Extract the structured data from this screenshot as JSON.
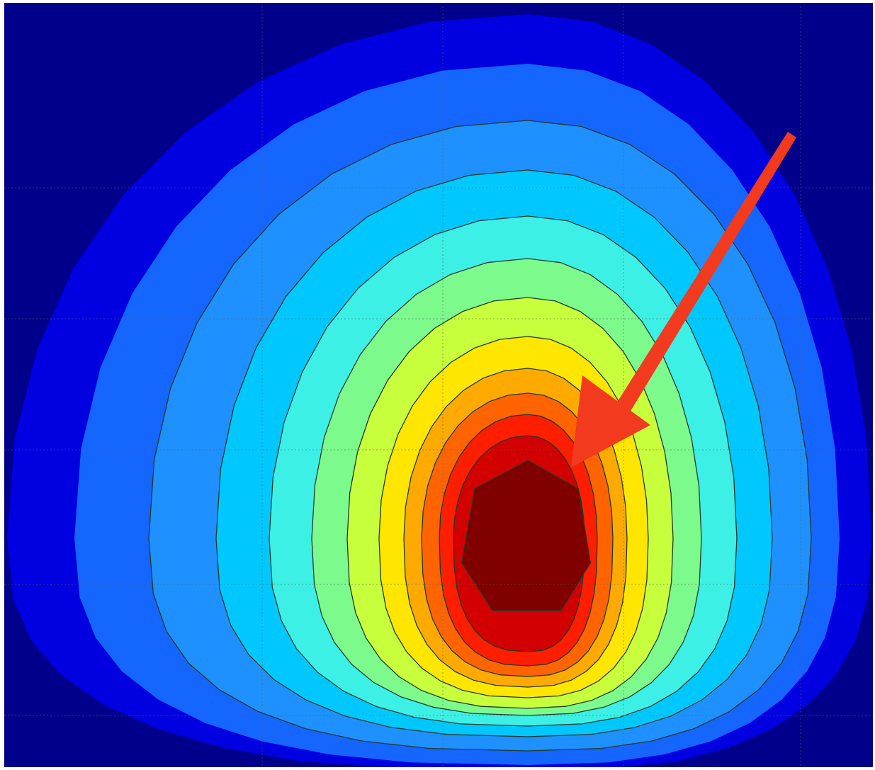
{
  "chart_data": {
    "type": "heatmap",
    "variant": "filled-contour",
    "title": "",
    "xlabel": "",
    "ylabel": "",
    "colormap": "jet",
    "levels": 14,
    "level_colors": [
      "#00008a",
      "#0000e0",
      "#1565ff",
      "#1e90ff",
      "#00c8ff",
      "#3cf0e6",
      "#7dfa8c",
      "#c8ff3c",
      "#ffe600",
      "#ffaa00",
      "#ff6400",
      "#ff1e00",
      "#d20000",
      "#800000"
    ],
    "grid": true,
    "legend": "none",
    "annotation": {
      "type": "arrow",
      "color": "#f23a1e",
      "points_to": "peak"
    }
  }
}
